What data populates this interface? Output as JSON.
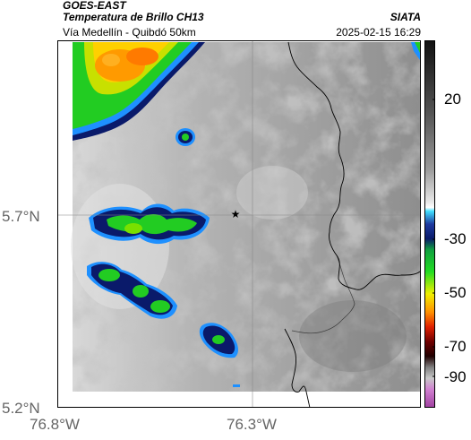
{
  "header": {
    "satellite": "GOES-EAST",
    "product": "Temperatura de Brillo CH13",
    "agency": "SIATA",
    "subtitle": "Vía Medellín - Quibdó 50km",
    "datetime": "2025-02-15 16:29"
  },
  "axes": {
    "lat_labels": [
      "5.7°N",
      "5.2°N"
    ],
    "lon_labels": [
      "76.8°W",
      "76.3°W"
    ]
  },
  "colorbar": {
    "labels": [
      "20",
      "-30",
      "-50",
      "-70",
      "-90"
    ],
    "colors": [
      "#111111",
      "#7a7a7a",
      "#d8d8d8",
      "#ffffff",
      "#1e90ff",
      "#0a1a6a",
      "#22cc22",
      "#f0f000",
      "#ff8c00",
      "#d00000",
      "#300000",
      "#b0b0b0",
      "#c060c0"
    ]
  },
  "map": {
    "marker": "★",
    "icons": [
      "star-marker-icon"
    ]
  }
}
